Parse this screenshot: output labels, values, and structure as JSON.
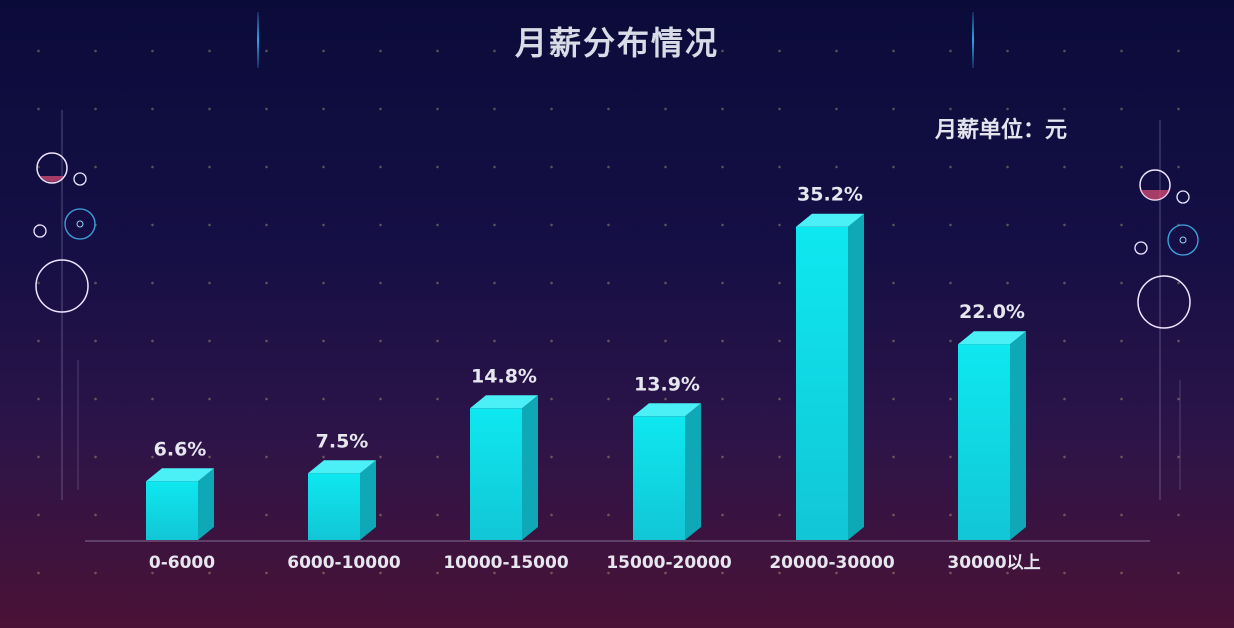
{
  "chart_data": {
    "type": "bar",
    "title": "月薪分布情况",
    "unit_note": "月薪单位：元",
    "categories": [
      "0-6000",
      "6000-10000",
      "10000-15000",
      "15000-20000",
      "20000-30000",
      "30000以上"
    ],
    "values": [
      6.6,
      7.5,
      14.8,
      13.9,
      35.2,
      22.0
    ],
    "value_labels": [
      "6.6%",
      "7.5%",
      "14.8%",
      "13.9%",
      "35.2%",
      "22.0%"
    ],
    "ylim": [
      0,
      40
    ],
    "grid": false,
    "colors": {
      "bar_front": "#0ee6ee",
      "bar_side": "#0fa8b6",
      "bar_top": "#4af0f5",
      "label": "#e6e6ee"
    }
  }
}
